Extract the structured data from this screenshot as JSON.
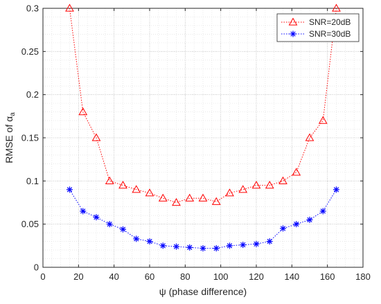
{
  "chart_data": {
    "type": "line",
    "xlabel": "ψ (phase difference)",
    "ylabel_main": "RMSE of α",
    "ylabel_sub": "a",
    "xlim": [
      0,
      180
    ],
    "ylim": [
      0,
      0.3
    ],
    "xticks": [
      0,
      20,
      40,
      60,
      80,
      100,
      120,
      140,
      160,
      180
    ],
    "yticks": [
      0,
      0.05,
      0.1,
      0.15,
      0.2,
      0.25,
      0.3
    ],
    "grid": "major and minor, dotted",
    "legend_position": "top-right",
    "x": [
      15,
      22.5,
      30,
      37.5,
      45,
      52.5,
      60,
      67.5,
      75,
      82.5,
      90,
      97.5,
      105,
      112.5,
      120,
      127.5,
      135,
      142.5,
      150,
      157.5,
      165
    ],
    "series": [
      {
        "name": "SNR=20dB",
        "color": "#ff0000",
        "marker": "triangle",
        "line_style": "dotted",
        "values": [
          0.3,
          0.18,
          0.15,
          0.1,
          0.095,
          0.09,
          0.086,
          0.08,
          0.075,
          0.08,
          0.08,
          0.076,
          0.086,
          0.09,
          0.095,
          0.095,
          0.1,
          0.11,
          0.15,
          0.17,
          0.3
        ]
      },
      {
        "name": "SNR=30dB",
        "color": "#0000ff",
        "marker": "asterisk",
        "line_style": "dotted",
        "values": [
          0.09,
          0.065,
          0.058,
          0.05,
          0.044,
          0.033,
          0.03,
          0.025,
          0.024,
          0.023,
          0.022,
          0.022,
          0.025,
          0.026,
          0.027,
          0.03,
          0.045,
          0.05,
          0.055,
          0.065,
          0.09
        ]
      }
    ]
  }
}
